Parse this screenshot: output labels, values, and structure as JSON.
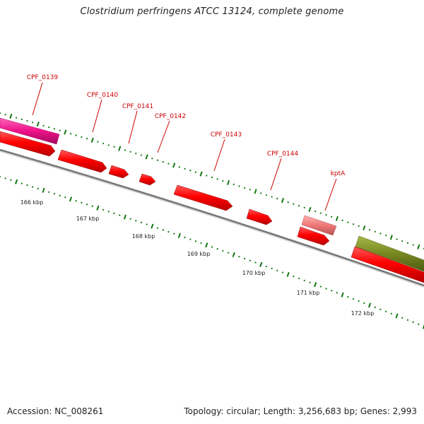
{
  "title": "Clostridium perfringens ATCC 13124, complete genome",
  "footer": {
    "accession": "Accession: NC_008261",
    "stats": "Topology: circular; Length: 3,256,683 bp; Genes: 2,993"
  },
  "gene_labels": [
    "CPF_0139",
    "CPF_0140",
    "CPF_0141",
    "CPF_0142",
    "CPF_0143",
    "CPF_0144",
    "kptA"
  ],
  "kbp_labels": [
    "166 kbp",
    "167 kbp",
    "168 kbp",
    "169 kbp",
    "170 kbp",
    "171 kbp",
    "172 kbp"
  ],
  "colors": {
    "forward_gene": "#ff0000",
    "reverse_gene_pink": "#ee1188",
    "reverse_gene_light": "#ee7777",
    "reverse_gene_olive": "#778822",
    "backbone": "#888888",
    "tick": "#117711",
    "label": "#cc0000"
  }
}
